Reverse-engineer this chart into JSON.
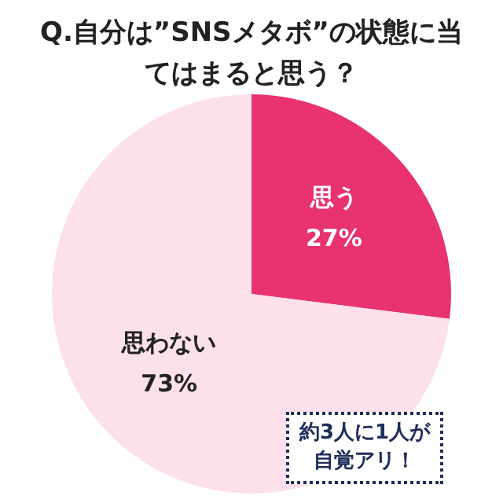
{
  "chart_data": {
    "type": "pie",
    "title": "Q.自分は”SNSメタボ”の状態に当てはまると思う？",
    "categories": [
      "思う",
      "思わない"
    ],
    "values": [
      27,
      73
    ],
    "colors": [
      "#e8336e",
      "#fce0ec"
    ],
    "value_labels": [
      "27%",
      "73%"
    ],
    "legend": false,
    "annotations": [
      "約3人に1人が自覚アリ！"
    ]
  }
}
